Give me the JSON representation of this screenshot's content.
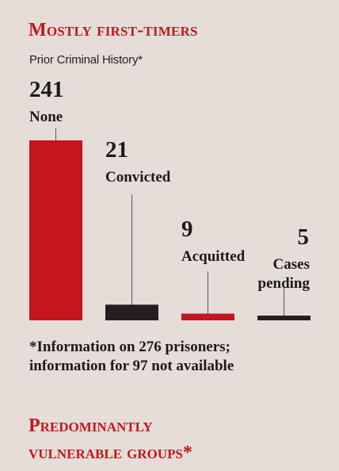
{
  "header": {
    "title": "Mostly first-timers",
    "subtitle": "Prior Criminal History*"
  },
  "chart_data": {
    "type": "bar",
    "title": "Mostly first-timers",
    "subtitle": "Prior Criminal History*",
    "categories": [
      "None",
      "Convicted",
      "Acquitted",
      "Cases pending"
    ],
    "category_lines": [
      [
        "None"
      ],
      [
        "Convicted"
      ],
      [
        "Acquitted"
      ],
      [
        "Cases",
        "pending"
      ]
    ],
    "values": [
      241,
      21,
      9,
      5
    ],
    "value_labels": [
      "241",
      "21",
      "9",
      "5"
    ],
    "bar_colors": [
      "#c4161c",
      "#231f20",
      "#c4161c",
      "#231f20"
    ],
    "xlabel": "",
    "ylabel": "",
    "ylim": [
      0,
      241
    ],
    "grid": false,
    "legend": "none"
  },
  "footnote": {
    "line1": "*Information on 276 prisoners;",
    "line2": "information for 97 not available"
  },
  "next_section": {
    "title_line1": "Predominantly",
    "title_line2": "vulnerable groups*"
  },
  "colors": {
    "background": "#e6dcd8",
    "accent": "#c4161c",
    "dark": "#231f20"
  }
}
